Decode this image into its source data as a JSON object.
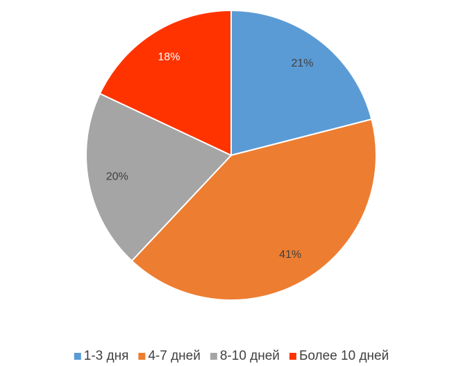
{
  "chart_data": {
    "type": "pie",
    "categories": [
      "1-3 дня",
      "4-7 дней",
      "8-10 дней",
      "Более 10 дней"
    ],
    "values": [
      21,
      41,
      20,
      18
    ],
    "value_labels": [
      "21%",
      "41%",
      "20%",
      "18%"
    ],
    "colors": [
      "#5b9bd5",
      "#ed7d31",
      "#a5a5a5",
      "#ff3300"
    ],
    "legend": "bottom"
  }
}
